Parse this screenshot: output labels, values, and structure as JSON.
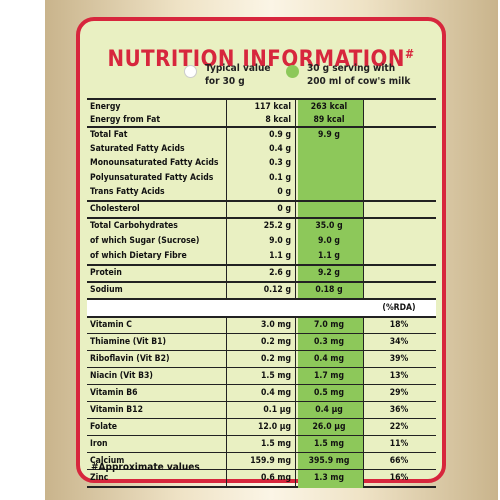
{
  "title": "NUTRITION INFORMATION",
  "title_mark": "#",
  "legend": {
    "typical": "Typical value\nfor 30 g",
    "serving": "30 g serving with\n200 ml of cow's milk"
  },
  "rows": [
    {
      "label": "Energy",
      "v1": "117 kcal",
      "v2": "263 kcal",
      "v3": ""
    },
    {
      "label": "Energy from Fat",
      "v1": "8 kcal",
      "v2": "89 kcal",
      "v3": ""
    },
    {
      "label": "Total Fat",
      "v1": "0.9 g",
      "v2": "9.9 g",
      "v3": ""
    },
    {
      "label": "Saturated Fatty Acids",
      "v1": "0.4 g",
      "v2": "",
      "v3": ""
    },
    {
      "label": "Monounsaturated Fatty Acids",
      "v1": "0.3 g",
      "v2": "",
      "v3": ""
    },
    {
      "label": "Polyunsaturated Fatty Acids",
      "v1": "0.1 g",
      "v2": "",
      "v3": ""
    },
    {
      "label": "Trans Fatty Acids",
      "v1": "0 g",
      "v2": "",
      "v3": ""
    },
    {
      "label": "Cholesterol",
      "v1": "0 g",
      "v2": "",
      "v3": ""
    },
    {
      "label": "Total Carbohydrates",
      "v1": "25.2 g",
      "v2": "35.0 g",
      "v3": ""
    },
    {
      "label": "of which Sugar (Sucrose)",
      "v1": "9.0 g",
      "v2": "9.0 g",
      "v3": ""
    },
    {
      "label": "of which Dietary Fibre",
      "v1": "1.1 g",
      "v2": "1.1 g",
      "v3": ""
    },
    {
      "label": "Protein",
      "v1": "2.6 g",
      "v2": "9.2 g",
      "v3": ""
    },
    {
      "label": "Sodium",
      "v1": "0.12 g",
      "v2": "0.18 g",
      "v3": ""
    },
    {
      "label": "",
      "v1": "",
      "v2": "",
      "v3": "(%RDA)"
    },
    {
      "label": "Vitamin C",
      "v1": "3.0 mg",
      "v2": "7.0 mg",
      "v3": "18%"
    },
    {
      "label": "Thiamine (Vit B1)",
      "v1": "0.2 mg",
      "v2": "0.3 mg",
      "v3": "34%"
    },
    {
      "label": "Riboflavin (Vit B2)",
      "v1": "0.2 mg",
      "v2": "0.4 mg",
      "v3": "39%"
    },
    {
      "label": "Niacin (Vit B3)",
      "v1": "1.5 mg",
      "v2": "1.7 mg",
      "v3": "13%"
    },
    {
      "label": "Vitamin B6",
      "v1": "0.4 mg",
      "v2": "0.5 mg",
      "v3": "29%"
    },
    {
      "label": "Vitamin B12",
      "v1": "0.1 µg",
      "v2": "0.4 µg",
      "v3": "36%"
    },
    {
      "label": "Folate",
      "v1": "12.0 µg",
      "v2": "26.0 µg",
      "v3": "22%"
    },
    {
      "label": "Iron",
      "v1": "1.5 mg",
      "v2": "1.5 mg",
      "v3": "11%"
    },
    {
      "label": "Calcium",
      "v1": "159.9 mg",
      "v2": "395.9 mg",
      "v3": "66%"
    },
    {
      "label": "Zinc",
      "v1": "0.6 mg",
      "v2": "1.3 mg",
      "v3": "16%"
    }
  ],
  "footnote": "#Approximate values",
  "colors": {
    "accent": "#d7263d",
    "green": "#8dc85a",
    "panel": "#e9f0c2"
  }
}
